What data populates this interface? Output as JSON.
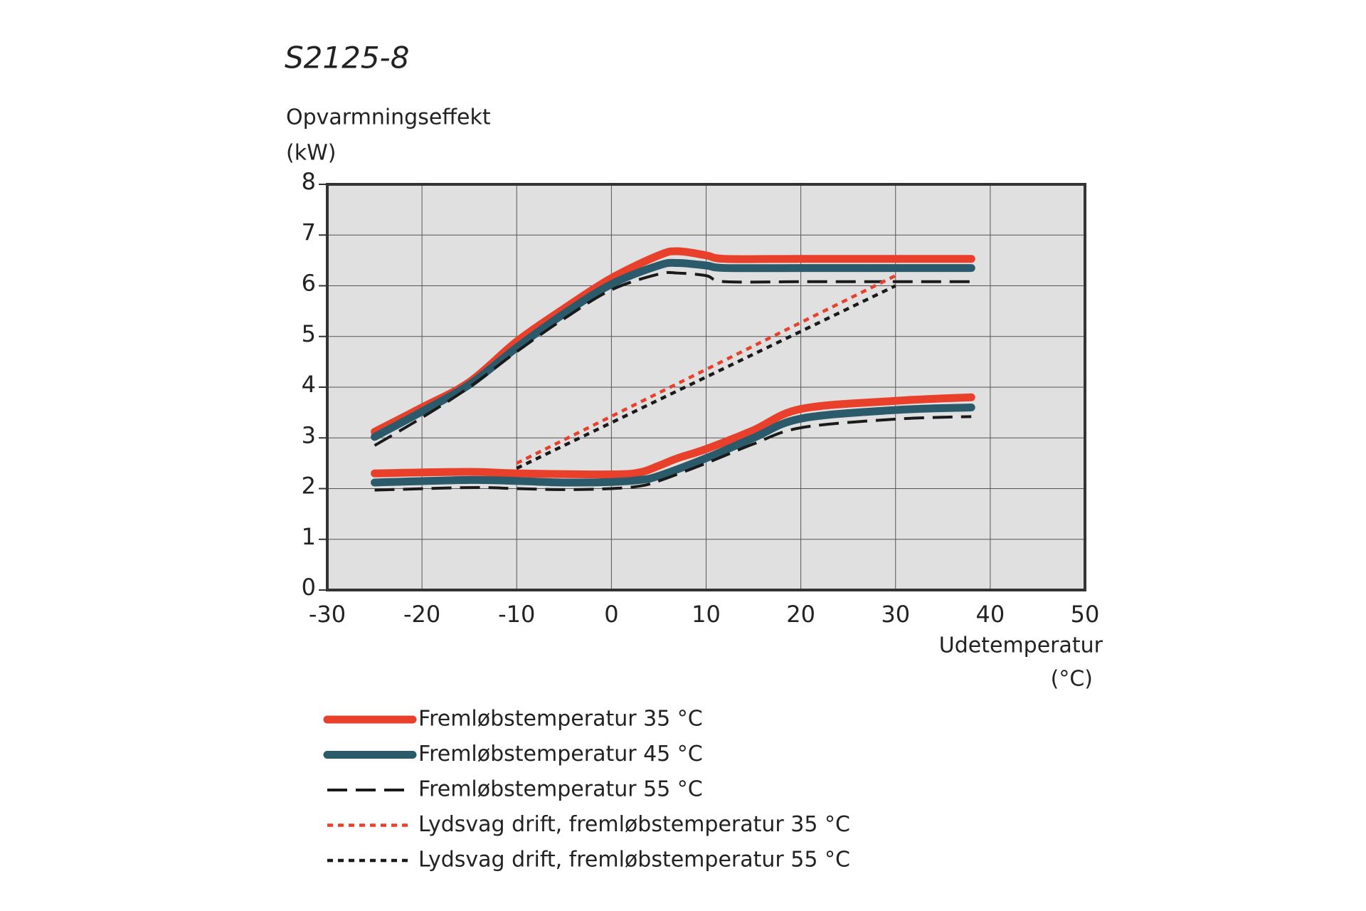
{
  "chart_data": {
    "type": "line",
    "title": "S2125-8",
    "ylabel": [
      "Opvarmningseffekt",
      "(kW)"
    ],
    "xlabel": [
      "Udetemperatur",
      "(°C)"
    ],
    "xlim": [
      -30,
      50
    ],
    "ylim": [
      0,
      8
    ],
    "xticks": [
      -30,
      -20,
      -10,
      0,
      10,
      20,
      30,
      40,
      50
    ],
    "yticks": [
      0,
      1,
      2,
      3,
      4,
      5,
      6,
      7,
      8
    ],
    "grid": true,
    "series": [
      {
        "name": "Fremløbstemperatur 35 °C",
        "color": "#e8402a",
        "line_style": "solid",
        "x": [
          -25,
          -20,
          -15,
          -10,
          -5,
          0,
          5,
          7,
          10,
          12,
          20,
          30,
          38,
          null,
          -25,
          -15,
          -10,
          0,
          3,
          5,
          7,
          10,
          15,
          20,
          30,
          38
        ],
        "values": [
          3.12,
          3.6,
          4.1,
          4.9,
          5.55,
          6.15,
          6.6,
          6.68,
          6.6,
          6.53,
          6.53,
          6.53,
          6.53,
          null,
          2.3,
          2.33,
          2.3,
          2.28,
          2.32,
          2.45,
          2.6,
          2.78,
          3.15,
          3.57,
          3.73,
          3.8
        ]
      },
      {
        "name": "Fremløbstemperatur 45 °C",
        "color": "#2b5a6a",
        "line_style": "solid",
        "x": [
          -25,
          -20,
          -15,
          -10,
          -5,
          0,
          5,
          7,
          10,
          12,
          20,
          30,
          38,
          null,
          -25,
          -15,
          -10,
          -5,
          0,
          3,
          5,
          10,
          15,
          20,
          30,
          38
        ],
        "values": [
          3.02,
          3.52,
          4.05,
          4.78,
          5.45,
          6.03,
          6.4,
          6.45,
          6.4,
          6.35,
          6.35,
          6.35,
          6.35,
          null,
          2.12,
          2.17,
          2.15,
          2.12,
          2.13,
          2.17,
          2.25,
          2.6,
          3.0,
          3.38,
          3.55,
          3.6
        ]
      },
      {
        "name": "Fremløbstemperatur 55 °C",
        "color": "#1a1a1a",
        "line_style": "dashed",
        "x": [
          -25,
          -20,
          -15,
          -10,
          -5,
          0,
          5,
          7,
          10,
          12,
          20,
          30,
          38,
          null,
          -25,
          -15,
          -10,
          -5,
          0,
          3,
          5,
          10,
          15,
          20,
          30,
          38
        ],
        "values": [
          2.85,
          3.4,
          4.0,
          4.7,
          5.35,
          5.92,
          6.23,
          6.25,
          6.2,
          6.08,
          6.08,
          6.08,
          6.08,
          null,
          1.97,
          2.02,
          2.0,
          1.98,
          2.0,
          2.05,
          2.15,
          2.5,
          2.88,
          3.2,
          3.37,
          3.42
        ]
      },
      {
        "name": "Lydsvag drift, fremløbstemperatur 35 °C",
        "color": "#e8402a",
        "line_style": "dotted",
        "x": [
          -10,
          30
        ],
        "values": [
          2.5,
          6.2
        ]
      },
      {
        "name": "Lydsvag drift, fremløbstemperatur 55 °C",
        "color": "#1a1a1a",
        "line_style": "dotted",
        "x": [
          -10,
          30
        ],
        "values": [
          2.4,
          6.0
        ]
      }
    ]
  }
}
